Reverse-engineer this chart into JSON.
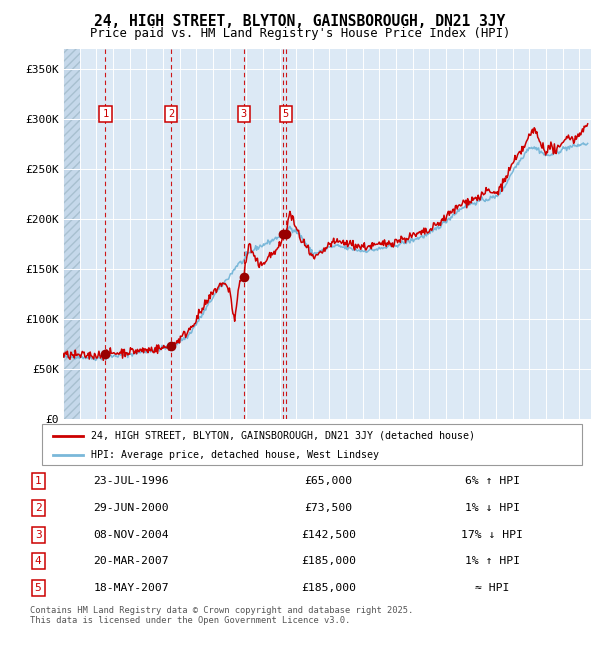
{
  "title": "24, HIGH STREET, BLYTON, GAINSBOROUGH, DN21 3JY",
  "subtitle": "Price paid vs. HM Land Registry's House Price Index (HPI)",
  "ylim": [
    0,
    370000
  ],
  "yticks": [
    0,
    50000,
    100000,
    150000,
    200000,
    250000,
    300000,
    350000
  ],
  "ytick_labels": [
    "£0",
    "£50K",
    "£100K",
    "£150K",
    "£200K",
    "£250K",
    "£300K",
    "£350K"
  ],
  "xlim_start": 1994.0,
  "xlim_end": 2025.7,
  "hpi_color": "#7ab8d9",
  "price_color": "#cc0000",
  "dot_color": "#990000",
  "dashed_line_color": "#cc0000",
  "bg_color": "#dce9f5",
  "grid_color": "#ffffff",
  "transactions": [
    {
      "id": 1,
      "date_str": "23-JUL-1996",
      "year": 1996.55,
      "price": 65000
    },
    {
      "id": 2,
      "date_str": "29-JUN-2000",
      "year": 2000.49,
      "price": 73500
    },
    {
      "id": 3,
      "date_str": "08-NOV-2004",
      "year": 2004.85,
      "price": 142500
    },
    {
      "id": 4,
      "date_str": "20-MAR-2007",
      "year": 2007.22,
      "price": 185000
    },
    {
      "id": 5,
      "date_str": "18-MAY-2007",
      "year": 2007.38,
      "price": 185000
    }
  ],
  "shown_ids": [
    1,
    2,
    3,
    5
  ],
  "legend_line1": "24, HIGH STREET, BLYTON, GAINSBOROUGH, DN21 3JY (detached house)",
  "legend_line2": "HPI: Average price, detached house, West Lindsey",
  "table_rows": [
    {
      "id": 1,
      "date": "23-JUL-1996",
      "price": "£65,000",
      "rel": "6% ↑ HPI"
    },
    {
      "id": 2,
      "date": "29-JUN-2000",
      "price": "£73,500",
      "rel": "1% ↓ HPI"
    },
    {
      "id": 3,
      "date": "08-NOV-2004",
      "price": "£142,500",
      "rel": "17% ↓ HPI"
    },
    {
      "id": 4,
      "date": "20-MAR-2007",
      "price": "£185,000",
      "rel": "1% ↑ HPI"
    },
    {
      "id": 5,
      "date": "18-MAY-2007",
      "price": "£185,000",
      "rel": "≈ HPI"
    }
  ],
  "footnote1": "Contains HM Land Registry data © Crown copyright and database right 2025.",
  "footnote2": "This data is licensed under the Open Government Licence v3.0."
}
